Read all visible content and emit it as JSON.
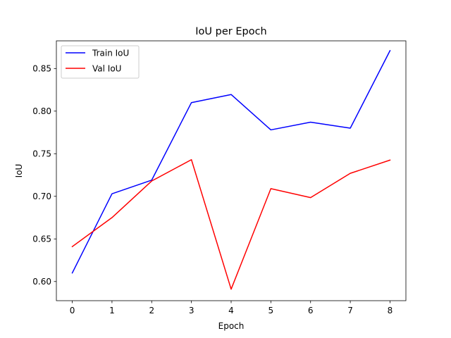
{
  "chart_data": {
    "type": "line",
    "title": "IoU per Epoch",
    "xlabel": "Epoch",
    "ylabel": "IoU",
    "x": [
      0,
      1,
      2,
      3,
      4,
      5,
      6,
      7,
      8
    ],
    "xlim": [
      -0.4,
      8.4
    ],
    "ylim": [
      0.5775,
      0.8825
    ],
    "xticks": [
      0,
      1,
      2,
      3,
      4,
      5,
      6,
      7,
      8
    ],
    "yticks": [
      0.6,
      0.65,
      0.7,
      0.75,
      0.8,
      0.85
    ],
    "xtick_labels": [
      "0",
      "1",
      "2",
      "3",
      "4",
      "5",
      "6",
      "7",
      "8"
    ],
    "ytick_labels": [
      "0.60",
      "0.65",
      "0.70",
      "0.75",
      "0.80",
      "0.85"
    ],
    "grid": false,
    "legend_position": "top-left",
    "series": [
      {
        "name": "Train IoU",
        "color": "#0000ff",
        "values": [
          0.61,
          0.703,
          0.719,
          0.81,
          0.8195,
          0.778,
          0.787,
          0.78,
          0.871
        ]
      },
      {
        "name": "Val IoU",
        "color": "#ff0000",
        "values": [
          0.641,
          0.675,
          0.718,
          0.743,
          0.591,
          0.709,
          0.6985,
          0.727,
          0.7425
        ]
      }
    ]
  }
}
